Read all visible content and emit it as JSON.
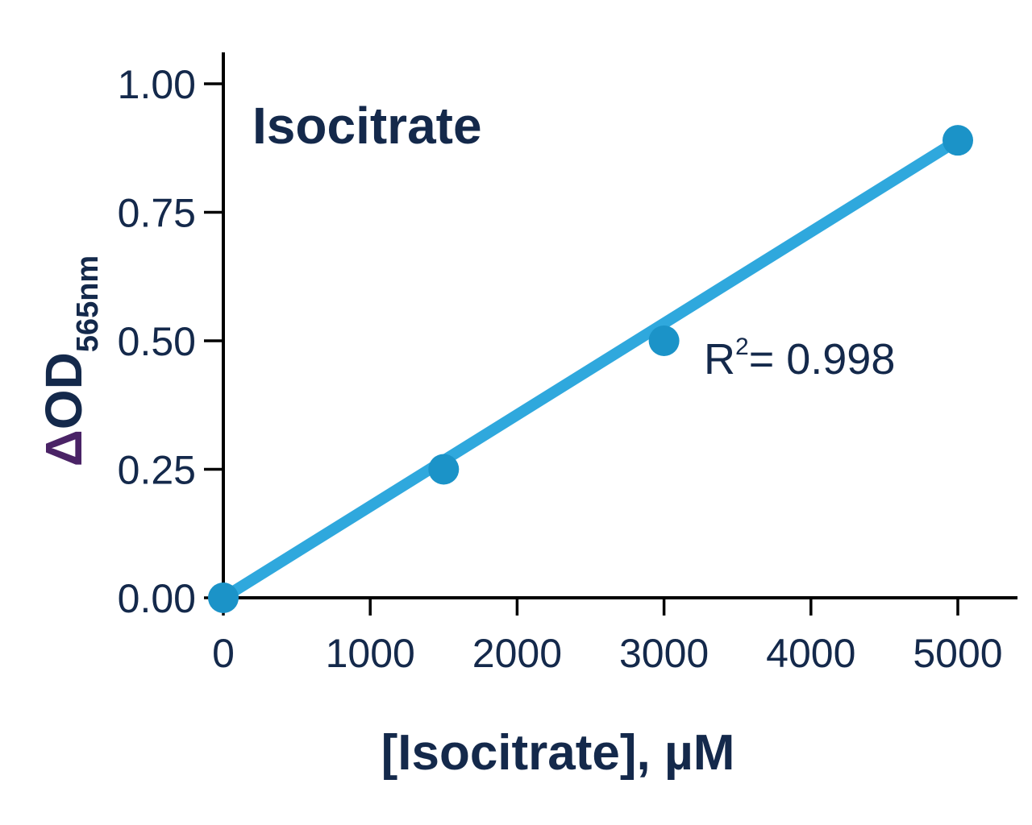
{
  "chart_data": {
    "type": "scatter",
    "title": "Isocitrate",
    "xlabel": "[Isocitrate], µM",
    "ylabel": {
      "symbol": "Δ",
      "main": "OD",
      "subscript": "565nm"
    },
    "xlim": [
      0,
      5400
    ],
    "ylim": [
      0,
      1.06
    ],
    "xticks": [
      0,
      1000,
      2000,
      3000,
      4000,
      5000
    ],
    "xtick_labels": [
      "0",
      "1000",
      "2000",
      "3000",
      "4000",
      "5000"
    ],
    "yticks": [
      0,
      0.25,
      0.5,
      0.75,
      1.0
    ],
    "ytick_labels": [
      "0.00",
      "0.25",
      "0.50",
      "0.75",
      "1.00"
    ],
    "grid": false,
    "series": [
      {
        "x": [
          0,
          1500,
          3000,
          5000
        ],
        "y": [
          0.0,
          0.25,
          0.5,
          0.89
        ],
        "point_color": "#1b93c8"
      }
    ],
    "fit_line": {
      "x": [
        0,
        5000
      ],
      "y": [
        0.0,
        0.89
      ],
      "color": "#2fa8dd"
    },
    "annotation": {
      "base": "R",
      "superscript": "2",
      "rest": "= 0.998"
    }
  }
}
